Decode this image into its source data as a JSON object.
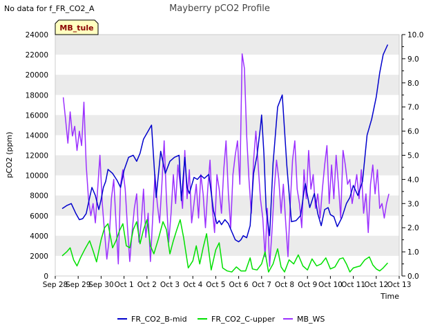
{
  "no_data_note": "No data for f_FR_CO2_A",
  "chart_data": {
    "type": "line",
    "title": "Mayberry pCO2 Profile",
    "tag_label": "MB_tule",
    "xlabel": "Time",
    "ylabel": "pCO2 (ppm)",
    "ylim": [
      0,
      24000
    ],
    "y2lim": [
      0,
      10.0
    ],
    "yticks": [
      "0",
      "2000",
      "4000",
      "6000",
      "8000",
      "10000",
      "12000",
      "14000",
      "16000",
      "18000",
      "20000",
      "22000",
      "24000"
    ],
    "y2ticks": [
      "0.0",
      "1.0",
      "2.0",
      "3.0",
      "4.0",
      "5.0",
      "6.0",
      "7.0",
      "8.0",
      "9.0",
      "10.0"
    ],
    "xlim": [
      0,
      15
    ],
    "x_ticks": [
      "Sep 28",
      "Sep 29",
      "Sep 30",
      "Oct 1",
      "Oct 2",
      "Oct 3",
      "Oct 4",
      "Oct 5",
      "Oct 6",
      "Oct 7",
      "Oct 8",
      "Oct 9",
      "Oct 10",
      "Oct 11",
      "Oct 12",
      "Oct 13"
    ],
    "colors": {
      "FR_CO2_B-mid": "#0000cc",
      "FR_CO2_C-upper": "#00e000",
      "MB_WS": "#9b30ff",
      "band": "#ebebeb",
      "tag_bg": "#ffffc0"
    },
    "series": [
      {
        "name": "FR_CO2_B-mid",
        "axis": "left",
        "x": [
          0.3,
          0.5,
          0.7,
          0.9,
          1.05,
          1.2,
          1.35,
          1.5,
          1.6,
          1.75,
          1.9,
          2.0,
          2.1,
          2.2,
          2.3,
          2.5,
          2.7,
          2.85,
          3.0,
          3.2,
          3.4,
          3.55,
          3.7,
          3.85,
          4.0,
          4.2,
          4.4,
          4.6,
          4.8,
          5.0,
          5.2,
          5.4,
          5.5,
          5.65,
          5.75,
          5.85,
          5.95,
          6.05,
          6.2,
          6.35,
          6.5,
          6.7,
          6.9,
          7.05,
          7.15,
          7.25,
          7.4,
          7.55,
          7.7,
          7.85,
          8.0,
          8.1,
          8.2,
          8.35,
          8.5,
          8.65,
          8.8,
          8.95,
          9.0,
          9.1,
          9.2,
          9.35,
          9.5,
          9.7,
          9.9,
          10.1,
          10.3,
          10.5,
          10.7,
          10.9,
          11.1,
          11.3,
          11.45,
          11.6,
          11.75,
          11.9,
          12.0,
          12.15,
          12.3,
          12.5,
          12.7,
          12.85,
          13.0,
          13.2,
          13.4,
          13.6,
          13.8,
          14.0,
          14.15,
          14.3,
          14.5
        ],
        "values": [
          6700,
          7000,
          7200,
          6200,
          5600,
          5700,
          6200,
          7800,
          8800,
          8000,
          6600,
          7600,
          8800,
          9400,
          10600,
          10200,
          9500,
          8800,
          10500,
          11800,
          12000,
          11400,
          12200,
          13600,
          14200,
          15000,
          7800,
          12400,
          10200,
          11400,
          11800,
          12000,
          7500,
          11800,
          8800,
          8200,
          9000,
          9800,
          9600,
          10000,
          9700,
          10100,
          6500,
          5200,
          5500,
          5100,
          5600,
          5200,
          4400,
          3600,
          3400,
          3600,
          4000,
          3800,
          5000,
          10200,
          12000,
          14800,
          16000,
          12200,
          6600,
          4000,
          11200,
          16800,
          18000,
          11000,
          5400,
          5500,
          6000,
          9200,
          6800,
          8200,
          6200,
          5000,
          6600,
          6800,
          6100,
          5900,
          4900,
          5800,
          7200,
          7800,
          9000,
          8000,
          9400,
          14000,
          15600,
          17800,
          20200,
          22000,
          23000
        ]
      },
      {
        "name": "FR_CO2_C-upper",
        "axis": "left",
        "x": [
          0.3,
          0.5,
          0.65,
          0.8,
          0.95,
          1.1,
          1.3,
          1.5,
          1.65,
          1.8,
          2.0,
          2.15,
          2.3,
          2.5,
          2.65,
          2.8,
          2.95,
          3.1,
          3.25,
          3.4,
          3.55,
          3.7,
          3.85,
          4.0,
          4.15,
          4.3,
          4.5,
          4.7,
          4.85,
          5.0,
          5.15,
          5.3,
          5.45,
          5.6,
          5.8,
          6.0,
          6.15,
          6.3,
          6.45,
          6.6,
          6.8,
          7.0,
          7.15,
          7.3,
          7.5,
          7.7,
          7.9,
          8.1,
          8.3,
          8.5,
          8.6,
          8.8,
          9.0,
          9.15,
          9.3,
          9.5,
          9.7,
          9.85,
          10.0,
          10.2,
          10.4,
          10.6,
          10.8,
          11.0,
          11.2,
          11.4,
          11.6,
          11.8,
          12.0,
          12.2,
          12.4,
          12.55,
          12.7,
          12.85,
          13.0,
          13.15,
          13.3,
          13.5,
          13.7,
          13.85,
          14.0,
          14.15,
          14.3,
          14.5
        ],
        "values": [
          2000,
          2400,
          2800,
          1600,
          1000,
          1800,
          2700,
          3500,
          2500,
          1400,
          3600,
          4800,
          5200,
          2800,
          3500,
          4500,
          5200,
          3000,
          2800,
          4600,
          5400,
          3200,
          4600,
          5600,
          3000,
          2200,
          3700,
          5400,
          4600,
          2200,
          3500,
          4600,
          5600,
          3800,
          800,
          1500,
          3000,
          1200,
          2800,
          4200,
          600,
          2600,
          3300,
          800,
          500,
          400,
          900,
          500,
          500,
          1800,
          700,
          600,
          1200,
          2400,
          400,
          1200,
          2700,
          900,
          400,
          1600,
          1200,
          2100,
          1000,
          600,
          1700,
          1000,
          1200,
          1800,
          700,
          900,
          1700,
          1800,
          1200,
          400,
          800,
          900,
          1000,
          1600,
          1900,
          1100,
          700,
          500,
          800,
          1300
        ]
      },
      {
        "name": "MB_WS",
        "axis": "right",
        "x": [
          0.35,
          0.45,
          0.55,
          0.65,
          0.75,
          0.85,
          0.95,
          1.05,
          1.15,
          1.25,
          1.35,
          1.45,
          1.55,
          1.65,
          1.75,
          1.85,
          1.95,
          2.05,
          2.15,
          2.25,
          2.35,
          2.45,
          2.55,
          2.65,
          2.75,
          2.85,
          2.95,
          3.05,
          3.15,
          3.25,
          3.35,
          3.45,
          3.55,
          3.65,
          3.75,
          3.85,
          3.95,
          4.05,
          4.15,
          4.25,
          4.35,
          4.45,
          4.55,
          4.65,
          4.75,
          4.85,
          4.95,
          5.05,
          5.15,
          5.25,
          5.35,
          5.45,
          5.55,
          5.65,
          5.75,
          5.85,
          5.95,
          6.05,
          6.15,
          6.25,
          6.35,
          6.45,
          6.55,
          6.65,
          6.75,
          6.85,
          6.95,
          7.05,
          7.15,
          7.25,
          7.35,
          7.45,
          7.55,
          7.65,
          7.75,
          7.85,
          7.95,
          8.05,
          8.15,
          8.25,
          8.35,
          8.45,
          8.55,
          8.65,
          8.75,
          8.85,
          8.95,
          9.05,
          9.15,
          9.25,
          9.35,
          9.45,
          9.55,
          9.65,
          9.75,
          9.85,
          9.95,
          10.05,
          10.15,
          10.25,
          10.35,
          10.45,
          10.55,
          10.65,
          10.75,
          10.85,
          10.95,
          11.05,
          11.15,
          11.25,
          11.35,
          11.45,
          11.55,
          11.65,
          11.75,
          11.85,
          11.95,
          12.05,
          12.15,
          12.25,
          12.35,
          12.45,
          12.55,
          12.65,
          12.75,
          12.85,
          12.95,
          13.05,
          13.15,
          13.25,
          13.35,
          13.45,
          13.55,
          13.65,
          13.75,
          13.85,
          13.95,
          14.05,
          14.15,
          14.25,
          14.35,
          14.45,
          14.55
        ],
        "values": [
          7.4,
          6.5,
          5.5,
          6.8,
          5.8,
          6.2,
          5.2,
          6.0,
          5.4,
          7.2,
          4.6,
          3.2,
          2.5,
          3.0,
          2.2,
          3.6,
          5.0,
          3.0,
          1.8,
          0.7,
          1.5,
          3.2,
          4.0,
          2.2,
          0.5,
          3.8,
          4.4,
          3.6,
          2.0,
          0.6,
          1.8,
          2.8,
          3.4,
          1.4,
          2.2,
          3.6,
          1.6,
          2.6,
          0.6,
          2.4,
          4.2,
          3.0,
          2.2,
          3.8,
          5.6,
          3.2,
          1.4,
          2.6,
          4.2,
          3.0,
          4.6,
          3.8,
          2.8,
          5.2,
          3.2,
          4.4,
          2.2,
          3.0,
          3.8,
          2.4,
          4.2,
          3.4,
          2.0,
          3.6,
          4.8,
          2.8,
          1.8,
          4.2,
          3.6,
          2.6,
          4.4,
          5.6,
          3.4,
          2.0,
          4.2,
          5.0,
          5.6,
          3.8,
          9.2,
          8.6,
          5.8,
          4.0,
          2.6,
          4.8,
          6.0,
          4.6,
          3.2,
          2.4,
          0.8,
          2.8,
          0.4,
          1.8,
          3.6,
          4.8,
          4.0,
          2.6,
          3.8,
          2.2,
          0.8,
          3.0,
          4.8,
          5.6,
          3.6,
          3.0,
          2.0,
          4.4,
          3.2,
          5.2,
          3.6,
          4.2,
          2.8,
          3.4,
          2.4,
          3.6,
          4.6,
          5.4,
          3.0,
          4.6,
          3.2,
          5.0,
          3.8,
          2.4,
          5.2,
          4.6,
          3.8,
          4.0,
          3.0,
          3.6,
          4.2,
          3.2,
          4.4,
          2.6,
          3.4,
          1.8,
          3.8,
          4.6,
          3.4,
          4.4,
          2.8,
          3.0,
          2.4,
          3.0,
          3.4
        ]
      }
    ]
  }
}
